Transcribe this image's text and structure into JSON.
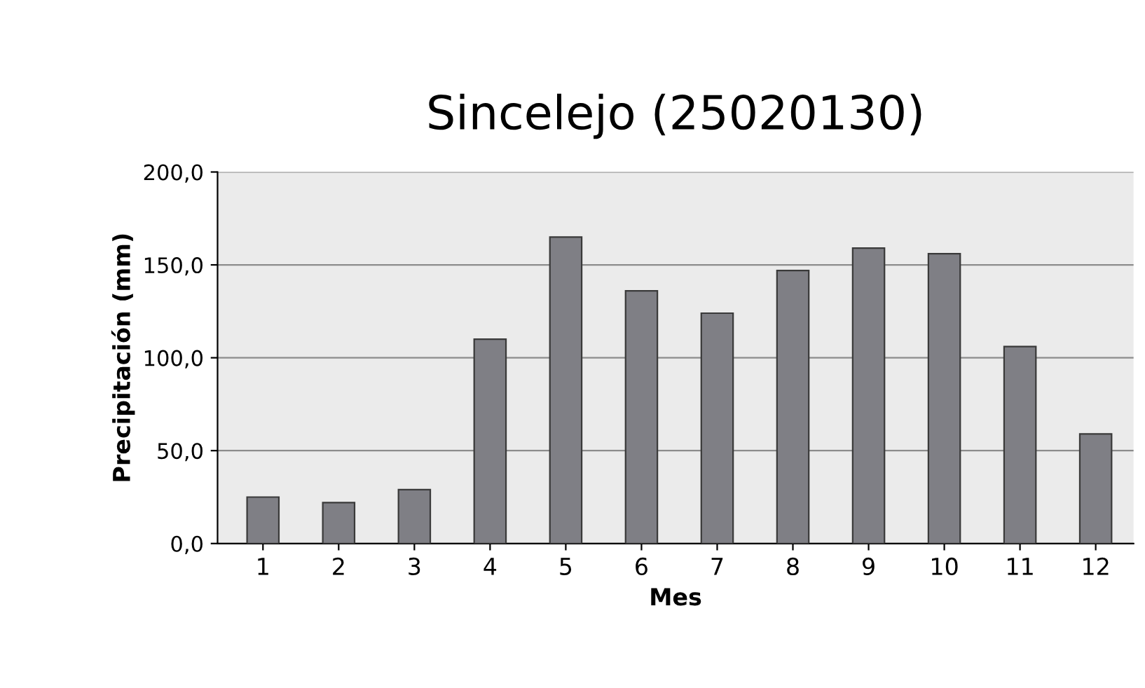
{
  "chart_data": {
    "type": "bar",
    "title": "Sincelejo (25020130)",
    "xlabel": "Mes",
    "ylabel": "Precipitación (mm)",
    "categories": [
      "1",
      "2",
      "3",
      "4",
      "5",
      "6",
      "7",
      "8",
      "9",
      "10",
      "11",
      "12"
    ],
    "values": [
      25,
      22,
      29,
      110,
      165,
      136,
      124,
      147,
      159,
      156,
      106,
      59
    ],
    "color": "#7f7f85",
    "ylim": [
      0,
      200
    ],
    "yticks": [
      {
        "value": 0,
        "label": "0,0"
      },
      {
        "value": 50,
        "label": "50,0"
      },
      {
        "value": 100,
        "label": "100,0"
      },
      {
        "value": 150,
        "label": "150,0"
      },
      {
        "value": 200,
        "label": "200,0"
      }
    ],
    "grid": "y"
  }
}
